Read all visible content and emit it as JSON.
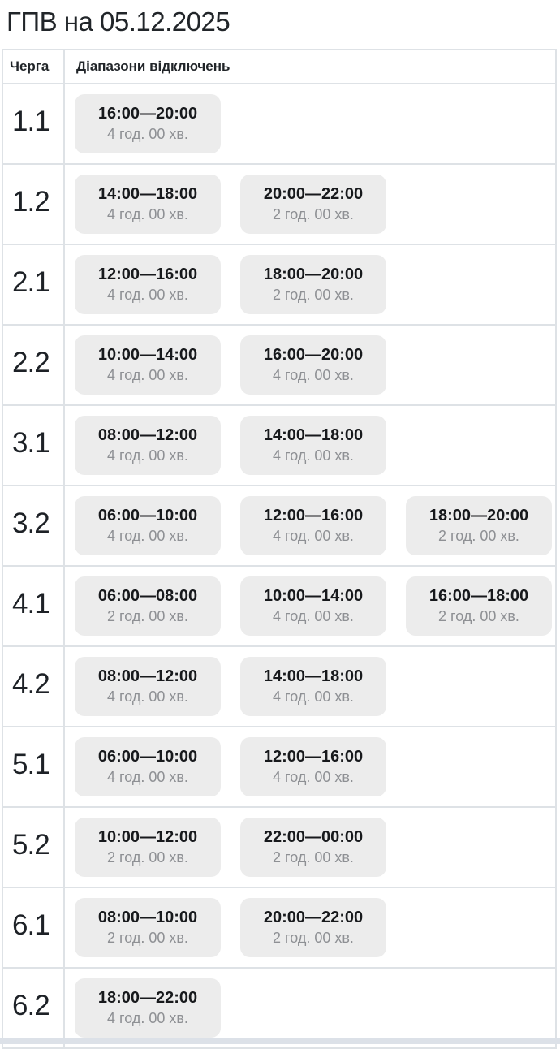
{
  "page": {
    "title": "ГПВ на 05.12.2025"
  },
  "table": {
    "headers": {
      "queue": "Черга",
      "ranges": "Діапазони відключень"
    },
    "rows": [
      {
        "queue": "1.1",
        "ranges": [
          {
            "time": "16:00—20:00",
            "duration": "4 год. 00 хв."
          }
        ]
      },
      {
        "queue": "1.2",
        "ranges": [
          {
            "time": "14:00—18:00",
            "duration": "4 год. 00 хв."
          },
          {
            "time": "20:00—22:00",
            "duration": "2 год. 00 хв."
          }
        ]
      },
      {
        "queue": "2.1",
        "ranges": [
          {
            "time": "12:00—16:00",
            "duration": "4 год. 00 хв."
          },
          {
            "time": "18:00—20:00",
            "duration": "2 год. 00 хв."
          }
        ]
      },
      {
        "queue": "2.2",
        "ranges": [
          {
            "time": "10:00—14:00",
            "duration": "4 год. 00 хв."
          },
          {
            "time": "16:00—20:00",
            "duration": "4 год. 00 хв."
          }
        ]
      },
      {
        "queue": "3.1",
        "ranges": [
          {
            "time": "08:00—12:00",
            "duration": "4 год. 00 хв."
          },
          {
            "time": "14:00—18:00",
            "duration": "4 год. 00 хв."
          }
        ]
      },
      {
        "queue": "3.2",
        "ranges": [
          {
            "time": "06:00—10:00",
            "duration": "4 год. 00 хв."
          },
          {
            "time": "12:00—16:00",
            "duration": "4 год. 00 хв."
          },
          {
            "time": "18:00—20:00",
            "duration": "2 год. 00 хв."
          }
        ]
      },
      {
        "queue": "4.1",
        "ranges": [
          {
            "time": "06:00—08:00",
            "duration": "2 год. 00 хв."
          },
          {
            "time": "10:00—14:00",
            "duration": "4 год. 00 хв."
          },
          {
            "time": "16:00—18:00",
            "duration": "2 год. 00 хв."
          }
        ]
      },
      {
        "queue": "4.2",
        "ranges": [
          {
            "time": "08:00—12:00",
            "duration": "4 год. 00 хв."
          },
          {
            "time": "14:00—18:00",
            "duration": "4 год. 00 хв."
          }
        ]
      },
      {
        "queue": "5.1",
        "ranges": [
          {
            "time": "06:00—10:00",
            "duration": "4 год. 00 хв."
          },
          {
            "time": "12:00—16:00",
            "duration": "4 год. 00 хв."
          }
        ]
      },
      {
        "queue": "5.2",
        "ranges": [
          {
            "time": "10:00—12:00",
            "duration": "2 год. 00 хв."
          },
          {
            "time": "22:00—00:00",
            "duration": "2 год. 00 хв."
          }
        ]
      },
      {
        "queue": "6.1",
        "ranges": [
          {
            "time": "08:00—10:00",
            "duration": "2 год. 00 хв."
          },
          {
            "time": "20:00—22:00",
            "duration": "2 год. 00 хв."
          }
        ]
      },
      {
        "queue": "6.2",
        "ranges": [
          {
            "time": "18:00—22:00",
            "duration": "4 год. 00 хв."
          }
        ]
      }
    ]
  },
  "colors": {
    "border": "#dee2e6",
    "chip_bg": "#ececec",
    "time_text": "#17191c",
    "duration_text": "#8e9094",
    "heading_text": "#212529",
    "bottom_strip": "#dce1e8"
  }
}
